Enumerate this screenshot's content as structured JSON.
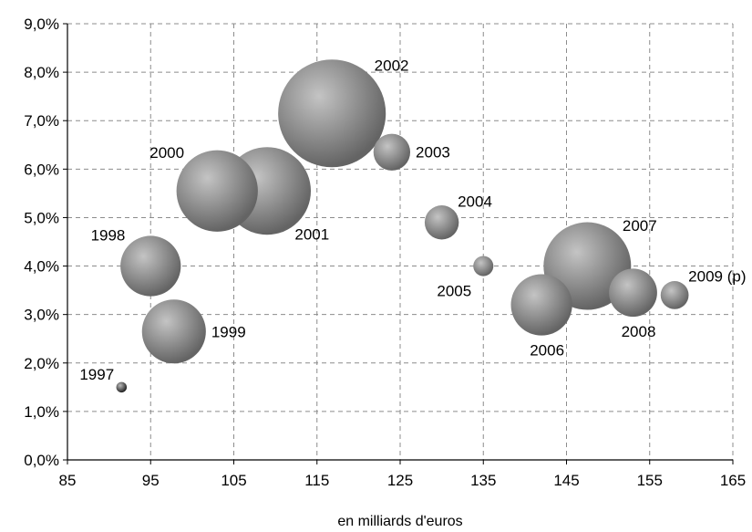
{
  "chart_data": {
    "type": "bubble",
    "xlabel": "en  milliards d'euros",
    "ylabel": "",
    "xlim": [
      85,
      165
    ],
    "ylim": [
      0,
      9
    ],
    "x_ticks": [
      "85",
      "95",
      "105",
      "115",
      "125",
      "135",
      "145",
      "155",
      "165"
    ],
    "y_ticks": [
      "0,0%",
      "1,0%",
      "2,0%",
      "3,0%",
      "4,0%",
      "5,0%",
      "6,0%",
      "7,0%",
      "8,0%",
      "9,0%"
    ],
    "grid": true,
    "points": [
      {
        "label": "1997",
        "x": 91.5,
        "y": 1.5,
        "size": 1.2,
        "label_pos": "upper-left"
      },
      {
        "label": "1998",
        "x": 95,
        "y": 4.0,
        "size": 6.9,
        "label_pos": "upper-left"
      },
      {
        "label": "1999",
        "x": 97.8,
        "y": 2.65,
        "size": 7.3,
        "label_pos": "right"
      },
      {
        "label": "2000",
        "x": 103,
        "y": 5.55,
        "size": 9.3,
        "label_pos": "upper-left"
      },
      {
        "label": "2001",
        "x": 109,
        "y": 5.55,
        "size": 10.0,
        "label_pos": "lower-right"
      },
      {
        "label": "2002",
        "x": 116.8,
        "y": 7.15,
        "size": 12.3,
        "label_pos": "upper-right"
      },
      {
        "label": "2003",
        "x": 124,
        "y": 6.35,
        "size": 4.2,
        "label_pos": "right"
      },
      {
        "label": "2004",
        "x": 130,
        "y": 4.9,
        "size": 3.9,
        "label_pos": "upper-right"
      },
      {
        "label": "2005",
        "x": 135,
        "y": 4.0,
        "size": 2.3,
        "label_pos": "lower-left"
      },
      {
        "label": "2006",
        "x": 142,
        "y": 3.2,
        "size": 7.0,
        "label_pos": "below"
      },
      {
        "label": "2007",
        "x": 147.5,
        "y": 4.0,
        "size": 10.0,
        "label_pos": "upper-right"
      },
      {
        "label": "2008",
        "x": 153,
        "y": 3.45,
        "size": 5.5,
        "label_pos": "below"
      },
      {
        "label": "2009 (p)",
        "x": 158,
        "y": 3.4,
        "size": 3.2,
        "label_pos": "upper-right"
      }
    ]
  },
  "colors": {
    "bubble_light": "#c4c4c4",
    "bubble_dark": "#646464",
    "bubble_1997_dark": "#222222",
    "grid": "#8c8c8c",
    "axis": "#000000"
  }
}
